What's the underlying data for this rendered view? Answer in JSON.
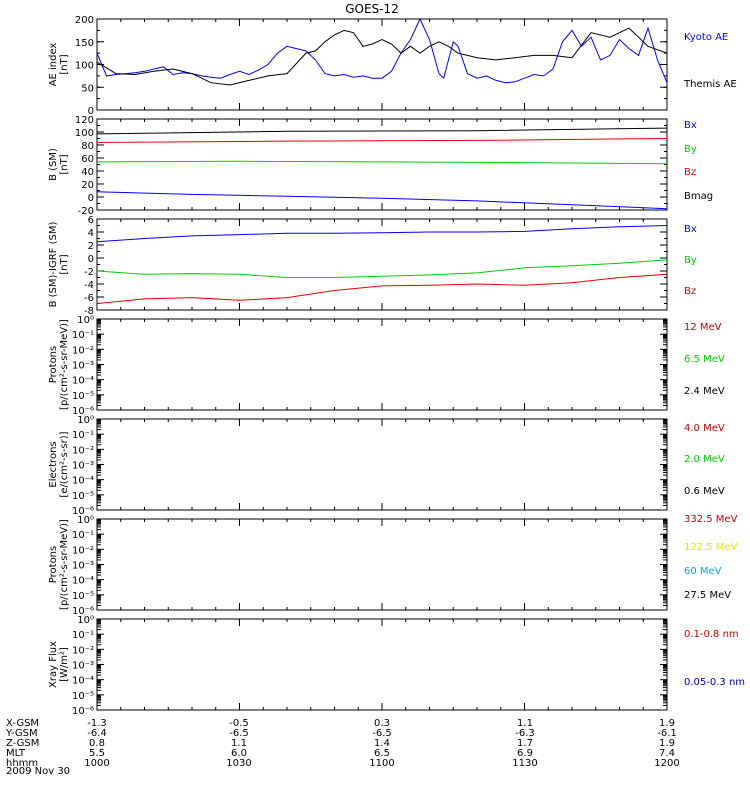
{
  "title": "GOES-12",
  "date_label": "2009 Nov 30",
  "chart_data": [
    {
      "type": "line",
      "ylabel": [
        "AE index",
        "[nT]"
      ],
      "ylim": [
        0,
        200
      ],
      "yticks": [
        0,
        50,
        100,
        150,
        200
      ],
      "ytick_labels": [
        "0",
        "50",
        "100",
        "150",
        "200"
      ],
      "x": [
        "1000",
        "1030",
        "1100",
        "1130",
        "1200"
      ],
      "xlim": [
        0,
        120
      ],
      "series": [
        {
          "name": "Kyoto AE",
          "color": "#0000ff",
          "x": [
            0,
            2,
            4,
            6,
            8,
            10,
            12,
            14,
            16,
            18,
            20,
            22,
            24,
            26,
            28,
            30,
            32,
            34,
            36,
            38,
            40,
            42,
            44,
            46,
            48,
            50,
            52,
            54,
            56,
            58,
            60,
            62,
            64,
            66,
            68,
            70,
            72,
            73,
            74,
            75,
            76,
            78,
            80,
            82,
            84,
            86,
            88,
            90,
            92,
            94,
            96,
            98,
            100,
            102,
            104,
            106,
            108,
            110,
            112,
            114,
            116,
            118,
            120
          ],
          "values": [
            125,
            75,
            78,
            80,
            82,
            85,
            90,
            95,
            78,
            82,
            80,
            75,
            72,
            70,
            78,
            85,
            78,
            88,
            100,
            125,
            140,
            135,
            130,
            110,
            80,
            75,
            78,
            72,
            75,
            70,
            70,
            85,
            125,
            155,
            200,
            155,
            80,
            70,
            110,
            150,
            140,
            80,
            70,
            75,
            65,
            60,
            62,
            70,
            78,
            75,
            90,
            150,
            175,
            140,
            160,
            110,
            120,
            155,
            135,
            120,
            180,
            110,
            60
          ]
        },
        {
          "name": "Themis AE",
          "color": "#000000",
          "x": [
            0,
            4,
            8,
            12,
            16,
            20,
            24,
            28,
            32,
            36,
            40,
            44,
            46,
            48,
            50,
            52,
            54,
            56,
            58,
            60,
            62,
            64,
            66,
            68,
            70,
            72,
            74,
            76,
            78,
            80,
            84,
            88,
            92,
            96,
            100,
            104,
            108,
            112,
            116,
            120
          ],
          "values": [
            105,
            80,
            78,
            85,
            90,
            80,
            60,
            55,
            65,
            75,
            80,
            125,
            130,
            150,
            165,
            175,
            170,
            140,
            145,
            155,
            145,
            125,
            140,
            125,
            140,
            150,
            140,
            125,
            120,
            115,
            110,
            115,
            120,
            120,
            115,
            170,
            160,
            180,
            140,
            125
          ]
        }
      ]
    },
    {
      "type": "line",
      "ylabel": [
        "B (SM)",
        "[nT]"
      ],
      "ylim": [
        -20,
        120
      ],
      "yticks": [
        -20,
        0,
        20,
        40,
        60,
        80,
        100,
        120
      ],
      "ytick_labels": [
        "-20",
        "0",
        "20",
        "40",
        "60",
        "80",
        "100",
        "120"
      ],
      "xlim": [
        0,
        120
      ],
      "series": [
        {
          "name": "Bx",
          "color": "#0000ff",
          "x": [
            0,
            20,
            40,
            60,
            80,
            100,
            120
          ],
          "values": [
            8,
            4,
            1,
            -2,
            -6,
            -12,
            -18
          ]
        },
        {
          "name": "By",
          "color": "#00cc00",
          "x": [
            0,
            30,
            60,
            90,
            120
          ],
          "values": [
            54,
            55,
            54,
            53,
            51
          ]
        },
        {
          "name": "Bz",
          "color": "#ee0000",
          "x": [
            0,
            40,
            80,
            120
          ],
          "values": [
            84,
            86,
            87,
            90
          ]
        },
        {
          "name": "Bmag",
          "color": "#000000",
          "x": [
            0,
            40,
            80,
            120
          ],
          "values": [
            97,
            101,
            102,
            106
          ]
        }
      ]
    },
    {
      "type": "line",
      "ylabel": [
        "B (SM)-IGRF (SM)",
        "[nT]"
      ],
      "ylim": [
        -8,
        6
      ],
      "yticks": [
        -8,
        -6,
        -4,
        -2,
        0,
        2,
        4,
        6
      ],
      "ytick_labels": [
        "-8",
        "-6",
        "-4",
        "-2",
        "0",
        "2",
        "4",
        "6"
      ],
      "xlim": [
        0,
        120
      ],
      "series": [
        {
          "name": "Bx",
          "color": "#0000ff",
          "x": [
            0,
            10,
            20,
            30,
            40,
            50,
            60,
            70,
            80,
            90,
            100,
            110,
            120
          ],
          "values": [
            2.5,
            3.0,
            3.4,
            3.6,
            3.8,
            3.8,
            3.9,
            4.0,
            4.0,
            4.1,
            4.5,
            4.8,
            5.0
          ]
        },
        {
          "name": "By",
          "color": "#00cc00",
          "x": [
            0,
            10,
            20,
            30,
            40,
            50,
            60,
            70,
            80,
            90,
            100,
            110,
            120
          ],
          "values": [
            -2.0,
            -2.5,
            -2.4,
            -2.5,
            -3.0,
            -3.0,
            -2.8,
            -2.6,
            -2.3,
            -1.5,
            -1.2,
            -0.8,
            -0.3
          ]
        },
        {
          "name": "Bz",
          "color": "#ee0000",
          "x": [
            0,
            10,
            20,
            30,
            40,
            50,
            60,
            70,
            80,
            90,
            100,
            110,
            120
          ],
          "values": [
            -7.0,
            -6.3,
            -6.1,
            -6.5,
            -6.1,
            -5.0,
            -4.3,
            -4.2,
            -4.0,
            -4.2,
            -3.8,
            -3.0,
            -2.5
          ]
        }
      ]
    },
    {
      "type": "line",
      "log": true,
      "ylabel": [
        "Protons",
        "[p/(cm²-s-sr-MeV)]"
      ],
      "ylim": [
        -6,
        0
      ],
      "yticks": [
        -6,
        -5,
        -4,
        -3,
        -2,
        -1,
        0
      ],
      "ytick_labels": [
        "10⁻⁶",
        "10⁻⁵",
        "10⁻⁴",
        "10⁻³",
        "10⁻²",
        "10⁻¹",
        "10⁰"
      ],
      "series": [
        {
          "name": "12 MeV",
          "color": "#cc0000",
          "values": []
        },
        {
          "name": "6.5 MeV",
          "color": "#00cc00",
          "values": []
        },
        {
          "name": "2.4 MeV",
          "color": "#000000",
          "values": []
        }
      ]
    },
    {
      "type": "line",
      "log": true,
      "ylabel": [
        "Electrons",
        "[e/(cm²-s-sr)]"
      ],
      "ylim": [
        -6,
        0
      ],
      "yticks": [
        -6,
        -5,
        -4,
        -3,
        -2,
        -1,
        0
      ],
      "ytick_labels": [
        "10⁻⁶",
        "10⁻⁵",
        "10⁻⁴",
        "10⁻³",
        "10⁻²",
        "10⁻¹",
        "10⁰"
      ],
      "series": [
        {
          "name": "4.0 MeV",
          "color": "#cc0000",
          "values": []
        },
        {
          "name": "2.0 MeV",
          "color": "#00cc00",
          "values": []
        },
        {
          "name": "0.6 MeV",
          "color": "#000000",
          "values": []
        }
      ]
    },
    {
      "type": "line",
      "log": true,
      "ylabel": [
        "Protons",
        "[p/(cm²-s-sr-MeV)]"
      ],
      "ylim": [
        -6,
        0
      ],
      "yticks": [
        -6,
        -5,
        -4,
        -3,
        -2,
        -1,
        0
      ],
      "ytick_labels": [
        "10⁻⁶",
        "10⁻⁵",
        "10⁻⁴",
        "10⁻³",
        "10⁻²",
        "10⁻¹",
        "10⁰"
      ],
      "series": [
        {
          "name": "332.5 MeV",
          "color": "#cc0000",
          "values": []
        },
        {
          "name": "122.5 MeV",
          "color": "#e6e600",
          "values": []
        },
        {
          "name": "60 MeV",
          "color": "#00aaee",
          "values": []
        },
        {
          "name": "27.5 MeV",
          "color": "#000000",
          "values": []
        }
      ]
    },
    {
      "type": "line",
      "log": true,
      "ylabel": [
        "Xray Flux",
        "[W/m²]"
      ],
      "ylim": [
        -6,
        0
      ],
      "yticks": [
        -6,
        -5,
        -4,
        -3,
        -2,
        -1,
        0
      ],
      "ytick_labels": [
        "10⁻⁶",
        "10⁻⁵",
        "10⁻⁴",
        "10⁻³",
        "10⁻²",
        "10⁻¹",
        "10⁰"
      ],
      "series": [
        {
          "name": "0.1-0.8 nm",
          "color": "#cc0000",
          "values": []
        },
        {
          "name": "0.05-0.3 nm",
          "color": "#0000cc",
          "values": []
        }
      ]
    }
  ],
  "x_axis_rows": [
    {
      "label": "X-GSM",
      "values": [
        "-1.3",
        "-0.5",
        "0.3",
        "1.1",
        "1.9"
      ]
    },
    {
      "label": "Y-GSM",
      "values": [
        "-6.4",
        "-6.5",
        "-6.5",
        "-6.3",
        "-6.1"
      ]
    },
    {
      "label": "Z-GSM",
      "values": [
        "0.8",
        "1.1",
        "1.4",
        "1.7",
        "1.9"
      ]
    },
    {
      "label": "MLT",
      "values": [
        "5.5",
        "6.0",
        "6.5",
        "6.9",
        "7.4"
      ]
    },
    {
      "label": "hhmm",
      "values": [
        "1000",
        "1030",
        "1100",
        "1130",
        "1200"
      ]
    }
  ]
}
